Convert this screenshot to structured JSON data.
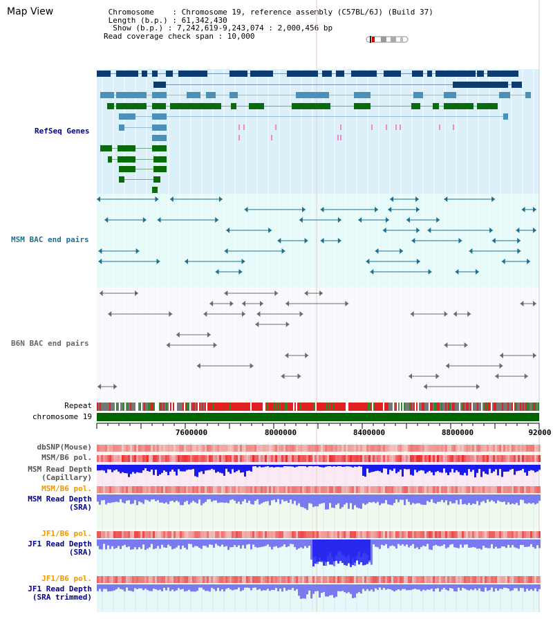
{
  "view": {
    "title": "Map View",
    "info": {
      "line1": " Chromosome    : Chromosome 19, reference assembly (C57BL/6J) (Build 37)",
      "line2": " Length (b.p.) : 61,342,430",
      "line3": "  Show (b.p.) : 7,242,619-9,243,074 : 2,000,456 bp",
      "line4": "Read coverage check span : 10,000"
    }
  },
  "tracks": {
    "refseq": "RefSeq Genes",
    "msm_bac": "MSM BAC end pairs",
    "b6n_bac": "B6N BAC end pairs",
    "repeat": "Repeat",
    "chromosome": "chromosome 19",
    "dbsnp": "dbSNP(Mouse)",
    "msm_b6_pol_1": "MSM/B6 pol.",
    "msm_depth_cap": "MSM Read Depth\n(Capillary)",
    "msm_b6_pol_2": "MSM/B6 pol.",
    "msm_depth_sra": "MSM Read Depth\n(SRA)",
    "jf1_b6_pol_1": "JF1/B6 pol.",
    "jf1_depth_sra": "JF1 Read Depth\n(SRA)",
    "jf1_b6_pol_2": "JF1/B6 pol.",
    "jf1_depth_trim": "JF1 Read Depth\n(SRA trimmed)"
  },
  "axis": {
    "ticks": [
      "7600000",
      "8000000",
      "8400000",
      "8800000",
      "92000"
    ]
  },
  "colors": {
    "refseq_bg": "#dcf0fa",
    "bac_bg": "#e6fafa",
    "navy": "#0d3b6e",
    "steel": "#4a90b8",
    "green": "#0a6b0a",
    "msm_line": "#1f6f8f",
    "b6n_line": "#6a6a6a",
    "chromosome": "#006400",
    "depth_dark": "#1a1aee",
    "depth_light": "#7a7af0",
    "pol_red": "#ee2b2b",
    "label_blue": "#00008b",
    "label_orange": "#ee9900"
  }
}
